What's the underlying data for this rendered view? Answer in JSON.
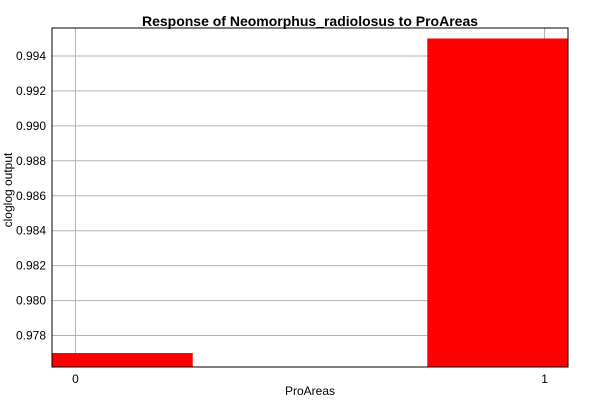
{
  "chart_data": {
    "type": "bar",
    "title": "Response of Neomorphus_radiolosus to ProAreas",
    "xlabel": "ProAreas",
    "ylabel": "cloglog output",
    "categories": [
      "0",
      "1"
    ],
    "x": [
      0,
      1
    ],
    "values": [
      0.977,
      0.995
    ],
    "ylim": [
      0.9762,
      0.9956
    ],
    "xlim": [
      -0.05,
      1.05
    ],
    "bar_half_width_data_units": 0.25,
    "y_ticks": [
      "0.978",
      "0.980",
      "0.982",
      "0.984",
      "0.986",
      "0.988",
      "0.990",
      "0.992",
      "0.994"
    ],
    "x_ticks": [
      "0",
      "1"
    ],
    "grid": true,
    "bar_color": "#ff0000",
    "grid_color": "#b3b3b3"
  }
}
